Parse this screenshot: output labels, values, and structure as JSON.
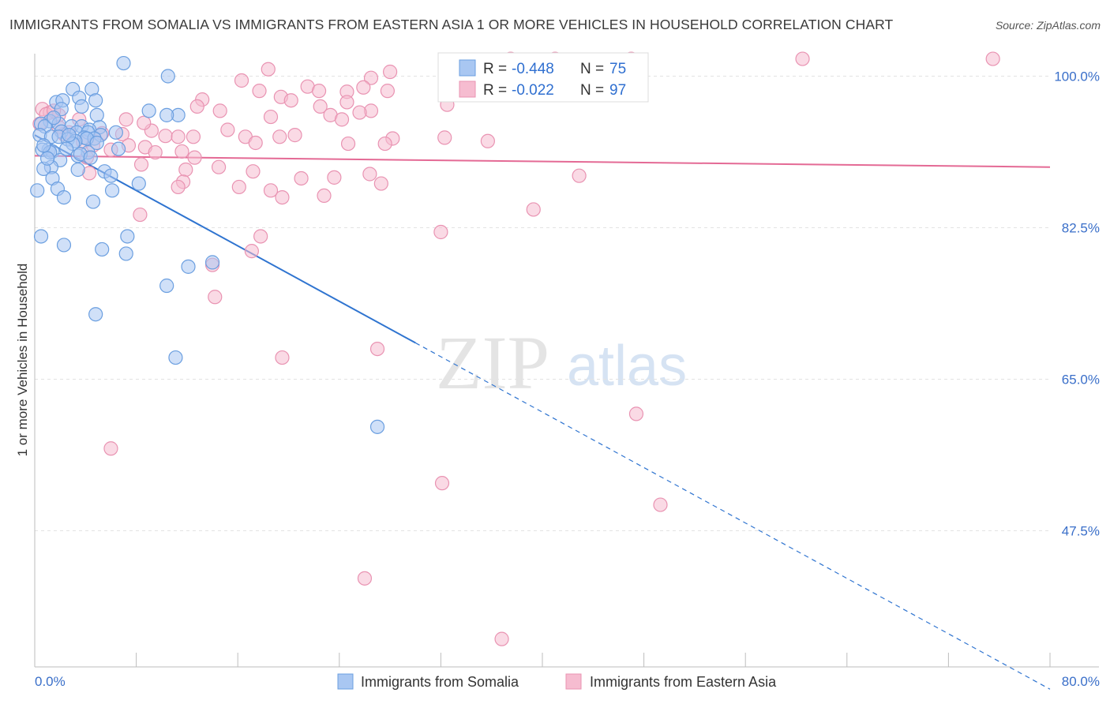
{
  "title": "IMMIGRANTS FROM SOMALIA VS IMMIGRANTS FROM EASTERN ASIA 1 OR MORE VEHICLES IN HOUSEHOLD CORRELATION CHART",
  "source": "Source: ZipAtlas.com",
  "watermark": {
    "zip": "ZIP",
    "atlas": "atlas"
  },
  "colors": {
    "somalia_fill": "#a9c7f2",
    "somalia_stroke": "#6b9fe0",
    "somalia_line": "#2f74d0",
    "easia_fill": "#f6bcd0",
    "easia_stroke": "#e993b2",
    "easia_line": "#e46a95",
    "tick_color": "#3a6fc9",
    "grid": "#e3e3e3"
  },
  "legend": {
    "r_label": "R =",
    "n_label": "N =",
    "somalia": {
      "r": "-0.448",
      "n": "75"
    },
    "easia": {
      "r": "-0.022",
      "n": "97"
    }
  },
  "bottom_legend": {
    "somalia": "Immigrants from Somalia",
    "easia": "Immigrants from Eastern Asia"
  },
  "chart_data": {
    "type": "scatter",
    "title": "IMMIGRANTS FROM SOMALIA VS IMMIGRANTS FROM EASTERN ASIA 1 OR MORE VEHICLES IN HOUSEHOLD CORRELATION CHART",
    "xlabel": "",
    "ylabel": "1 or more Vehicles in Household",
    "xlim": [
      0,
      80
    ],
    "ylim": [
      30.5,
      102.5
    ],
    "x_tick_labels": [
      "0.0%",
      "80.0%"
    ],
    "y_ticks": [
      100.0,
      82.5,
      65.0,
      47.5
    ],
    "y_tick_labels": [
      "100.0%",
      "82.5%",
      "65.0%",
      "47.5%"
    ],
    "grid": true,
    "legend_position": "top-center",
    "series": [
      {
        "name": "Immigrants from Somalia",
        "color": "#a9c7f2",
        "trend": {
          "x": [
            0,
            30
          ],
          "y": [
            93.2,
            69.2
          ],
          "dashed_extension_to": [
            80,
            29.2
          ]
        },
        "points": [
          [
            7,
            101.5
          ],
          [
            10.5,
            100
          ],
          [
            3,
            98.5
          ],
          [
            4.5,
            98.5
          ],
          [
            1.7,
            97
          ],
          [
            2.2,
            97.2
          ],
          [
            3.5,
            97.5
          ],
          [
            4.8,
            97.2
          ],
          [
            3.7,
            96.5
          ],
          [
            2.1,
            96.2
          ],
          [
            9,
            96
          ],
          [
            11.3,
            95.5
          ],
          [
            10.4,
            95.5
          ],
          [
            4.9,
            95.5
          ],
          [
            1.2,
            94.8
          ],
          [
            1.9,
            94.5
          ],
          [
            0.5,
            94.5
          ],
          [
            0.8,
            94.2
          ],
          [
            2.9,
            94.2
          ],
          [
            3.7,
            94.2
          ],
          [
            5.1,
            94.1
          ],
          [
            4.3,
            93.8
          ],
          [
            2.1,
            93.6
          ],
          [
            3.3,
            93.5
          ],
          [
            4.2,
            93.5
          ],
          [
            5.2,
            93.2
          ],
          [
            0.4,
            93.2
          ],
          [
            1.3,
            93.0
          ],
          [
            1.9,
            93.0
          ],
          [
            3.9,
            92.9
          ],
          [
            4.7,
            92.8
          ],
          [
            4.1,
            92.8
          ],
          [
            2.6,
            92.7
          ],
          [
            3.2,
            92.5
          ],
          [
            1.1,
            91.5
          ],
          [
            0.6,
            91.5
          ],
          [
            1.4,
            91.3
          ],
          [
            1.2,
            91.2
          ],
          [
            4.2,
            91.2
          ],
          [
            3.4,
            90.8
          ],
          [
            2.0,
            90.3
          ],
          [
            1.3,
            89.5
          ],
          [
            0.7,
            89.3
          ],
          [
            3.4,
            89.2
          ],
          [
            5.5,
            89.0
          ],
          [
            6.0,
            88.5
          ],
          [
            1.4,
            88.2
          ],
          [
            8.2,
            87.6
          ],
          [
            0.2,
            86.8
          ],
          [
            1.8,
            87.0
          ],
          [
            6.1,
            86.8
          ],
          [
            2.3,
            86.0
          ],
          [
            4.6,
            85.5
          ],
          [
            7.3,
            81.5
          ],
          [
            2.3,
            80.5
          ],
          [
            7.2,
            79.5
          ],
          [
            14,
            78.5
          ],
          [
            12.1,
            78.0
          ],
          [
            5.3,
            80.0
          ],
          [
            10.4,
            75.8
          ],
          [
            4.8,
            72.5
          ],
          [
            11.1,
            67.5
          ],
          [
            27.0,
            59.5
          ],
          [
            0.5,
            81.5
          ],
          [
            0.7,
            92.0
          ],
          [
            1.5,
            95.2
          ],
          [
            6.4,
            93.5
          ],
          [
            3.0,
            92.2
          ],
          [
            2.5,
            91.6
          ],
          [
            6.6,
            91.6
          ],
          [
            4.9,
            92.3
          ],
          [
            3.6,
            91.0
          ],
          [
            1.0,
            90.5
          ],
          [
            2.7,
            93.2
          ],
          [
            4.4,
            90.6
          ]
        ]
      },
      {
        "name": "Immigrants from Eastern Asia",
        "color": "#f6bcd0",
        "trend": {
          "x": [
            0,
            80
          ],
          "y": [
            90.8,
            89.5
          ]
        },
        "points": [
          [
            37.5,
            102
          ],
          [
            41,
            102
          ],
          [
            47,
            102
          ],
          [
            60.5,
            102
          ],
          [
            75.5,
            102
          ],
          [
            28,
            100.5
          ],
          [
            26.5,
            99.8
          ],
          [
            18.4,
            100.8
          ],
          [
            16.3,
            99.5
          ],
          [
            17.7,
            98.3
          ],
          [
            21.5,
            98.8
          ],
          [
            24.6,
            98.2
          ],
          [
            27.8,
            98.3
          ],
          [
            25.9,
            98.7
          ],
          [
            22.4,
            98.3
          ],
          [
            19.4,
            97.6
          ],
          [
            20.2,
            97.2
          ],
          [
            13.2,
            97.3
          ],
          [
            24.6,
            97.0
          ],
          [
            32.5,
            96.7
          ],
          [
            12.8,
            96.5
          ],
          [
            22.5,
            96.5
          ],
          [
            14.6,
            96.0
          ],
          [
            26.5,
            96.0
          ],
          [
            25.6,
            95.8
          ],
          [
            23.3,
            95.5
          ],
          [
            18.6,
            95.3
          ],
          [
            24.2,
            95.0
          ],
          [
            0.6,
            96.2
          ],
          [
            1.2,
            95.8
          ],
          [
            1.9,
            95.5
          ],
          [
            3.5,
            95.0
          ],
          [
            7.2,
            95.0
          ],
          [
            0.4,
            94.5
          ],
          [
            1.9,
            94.1
          ],
          [
            15.2,
            93.8
          ],
          [
            9.2,
            93.7
          ],
          [
            2.7,
            93.5
          ],
          [
            5.3,
            93.4
          ],
          [
            6.9,
            93.3
          ],
          [
            10.3,
            93.1
          ],
          [
            11.3,
            93.0
          ],
          [
            12.5,
            93.0
          ],
          [
            16.6,
            93.0
          ],
          [
            19.3,
            93.0
          ],
          [
            28.2,
            92.8
          ],
          [
            32.3,
            92.9
          ],
          [
            24.7,
            92.2
          ],
          [
            35.7,
            92.5
          ],
          [
            27.6,
            92.2
          ],
          [
            17.4,
            92.3
          ],
          [
            3.8,
            92.4
          ],
          [
            4.6,
            92.0
          ],
          [
            7.4,
            92.0
          ],
          [
            8.7,
            91.8
          ],
          [
            6.0,
            91.5
          ],
          [
            9.5,
            91.2
          ],
          [
            11.6,
            91.3
          ],
          [
            12.6,
            90.6
          ],
          [
            4.1,
            90.6
          ],
          [
            8.4,
            89.8
          ],
          [
            14.5,
            89.5
          ],
          [
            11.9,
            89.2
          ],
          [
            17.2,
            89.0
          ],
          [
            26.4,
            88.7
          ],
          [
            11.7,
            87.8
          ],
          [
            21.0,
            88.2
          ],
          [
            23.6,
            88.3
          ],
          [
            27.3,
            87.6
          ],
          [
            11.3,
            87.2
          ],
          [
            16.1,
            87.2
          ],
          [
            42.9,
            88.5
          ],
          [
            19.5,
            86.0
          ],
          [
            22.8,
            86.2
          ],
          [
            4.3,
            88.8
          ],
          [
            8.3,
            84.0
          ],
          [
            39.3,
            84.6
          ],
          [
            18.6,
            86.8
          ],
          [
            32.0,
            82.0
          ],
          [
            17.8,
            81.5
          ],
          [
            14.0,
            78.2
          ],
          [
            17.1,
            79.8
          ],
          [
            14.2,
            74.5
          ],
          [
            27.0,
            68.5
          ],
          [
            19.5,
            67.5
          ],
          [
            6.0,
            57.0
          ],
          [
            47.4,
            61.0
          ],
          [
            32.1,
            53.0
          ],
          [
            49.3,
            50.5
          ],
          [
            26.0,
            42.0
          ],
          [
            36.8,
            35.0
          ],
          [
            33.0,
            99.0
          ],
          [
            20.5,
            93.2
          ],
          [
            2.3,
            93.3
          ],
          [
            0.9,
            95.6
          ],
          [
            1.5,
            96.0
          ],
          [
            8.6,
            94.6
          ]
        ]
      }
    ]
  }
}
